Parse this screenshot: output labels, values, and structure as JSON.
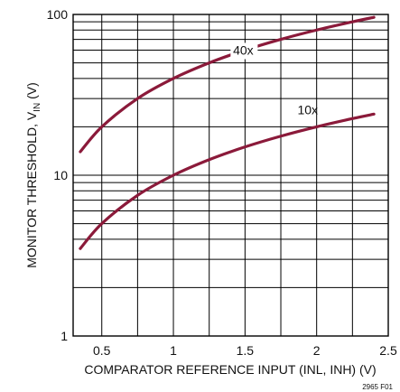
{
  "chart_data": {
    "type": "line",
    "xlabel": "COMPARATOR REFERENCE INPUT (INL, INH) (V)",
    "ylabel": {
      "main": "MONITOR THRESHOLD, V",
      "sub": "IN",
      "suffix": " (V)"
    },
    "xlim": [
      0.3,
      2.5
    ],
    "ylim": [
      1,
      100
    ],
    "yscale": "log",
    "grid": true,
    "x_ticks": [
      0.5,
      1,
      1.5,
      2,
      2.5
    ],
    "x_tick_labels": [
      "0.5",
      "1",
      "1.5",
      "2",
      "2.5"
    ],
    "y_ticks": [
      1,
      10,
      100
    ],
    "y_tick_labels": [
      "1",
      "10",
      "100"
    ],
    "series": [
      {
        "name": "40x",
        "x": [
          0.35,
          0.5,
          0.75,
          1.0,
          1.25,
          1.5,
          1.75,
          2.0,
          2.25,
          2.4
        ],
        "y": [
          14,
          20,
          30,
          40,
          50,
          60,
          70,
          80,
          90,
          96
        ]
      },
      {
        "name": "10x",
        "x": [
          0.35,
          0.5,
          0.75,
          1.0,
          1.25,
          1.5,
          1.75,
          2.0,
          2.25,
          2.4
        ],
        "y": [
          3.5,
          5,
          7.5,
          10,
          12.5,
          15,
          17.5,
          20,
          22.5,
          24
        ]
      }
    ],
    "line_color": "#8b1a3a",
    "figure_id": "2965 F01"
  }
}
